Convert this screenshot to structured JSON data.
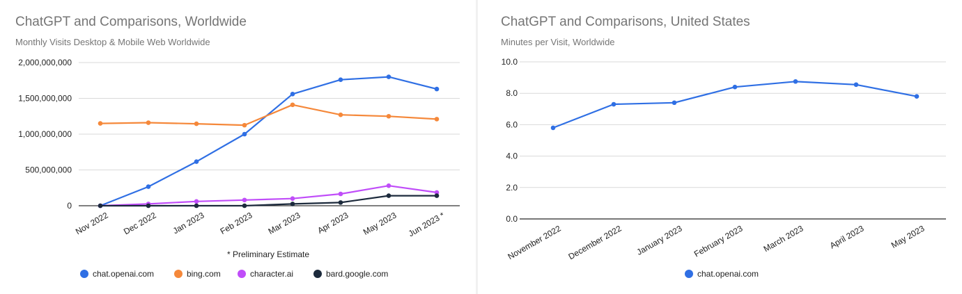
{
  "charts": [
    {
      "title": "ChatGPT and Comparisons, Worldwide",
      "subtitle": "Monthly Visits Desktop & Mobile Web Worldwide",
      "footnote": "* Preliminary Estimate"
    },
    {
      "title": "ChatGPT and Comparisons, United States",
      "subtitle": "Minutes per Visit, Worldwide"
    }
  ],
  "chart_data": [
    {
      "type": "line",
      "title": "ChatGPT and Comparisons, Worldwide",
      "subtitle": "Monthly Visits Desktop & Mobile Web Worldwide",
      "categories": [
        "Nov 2022",
        "Dec 2022",
        "Jan 2023",
        "Feb 2023",
        "Mar 2023",
        "Apr 2023",
        "May 2023",
        "Jun 2023 *"
      ],
      "series": [
        {
          "name": "chat.openai.com",
          "color": "#2f6fe4",
          "values": [
            0,
            266000000,
            616000000,
            1000000000,
            1560000000,
            1760000000,
            1800000000,
            1630000000
          ]
        },
        {
          "name": "bing.com",
          "color": "#f5883a",
          "values": [
            1150000000,
            1160000000,
            1145000000,
            1125000000,
            1410000000,
            1270000000,
            1250000000,
            1210000000
          ]
        },
        {
          "name": "character.ai",
          "color": "#c04df9",
          "values": [
            0,
            25000000,
            60000000,
            80000000,
            100000000,
            165000000,
            280000000,
            185000000
          ]
        },
        {
          "name": "bard.google.com",
          "color": "#1c2a3c",
          "values": [
            0,
            0,
            0,
            0,
            25000000,
            45000000,
            140000000,
            140000000
          ]
        }
      ],
      "yticks": [
        "2,000,000,000",
        "1,500,000,000",
        "1,000,000,000",
        "500,000,000",
        "0"
      ],
      "ylim": [
        0,
        2000000000
      ],
      "grid": true,
      "legend": "bottom",
      "footnote": "* Preliminary Estimate"
    },
    {
      "type": "line",
      "title": "ChatGPT and Comparisons, United States",
      "subtitle": "Minutes per Visit, Worldwide",
      "categories": [
        "November 2022",
        "December 2022",
        "January 2023",
        "February 2023",
        "March 2023",
        "April 2023",
        "May 2023"
      ],
      "series": [
        {
          "name": "chat.openai.com",
          "color": "#2f6fe4",
          "values": [
            5.8,
            7.3,
            7.4,
            8.4,
            8.75,
            8.55,
            7.8
          ]
        }
      ],
      "yticks": [
        "10.0",
        "8.0",
        "6.0",
        "4.0",
        "2.0",
        "0.0"
      ],
      "ylim": [
        0,
        10
      ],
      "grid": true,
      "legend": "bottom"
    }
  ]
}
